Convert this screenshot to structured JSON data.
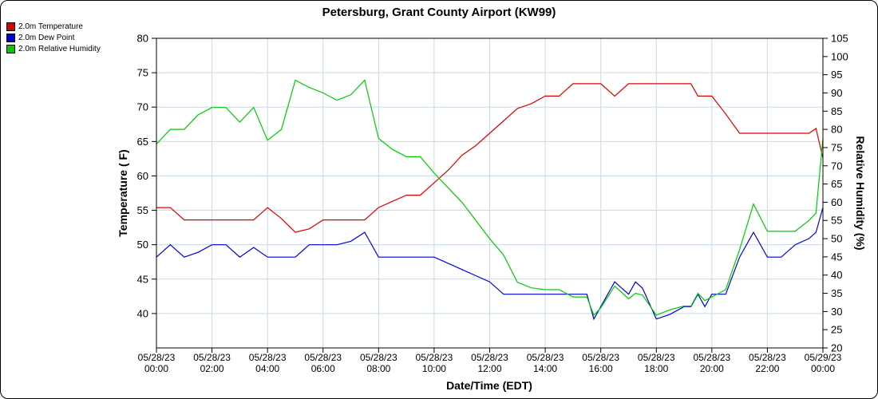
{
  "title": "Petersburg, Grant County Airport (KW99)",
  "legend": [
    {
      "label": "2.0m Temperature",
      "color": "#dd0000"
    },
    {
      "label": "2.0m Dew Point",
      "color": "#0000dd"
    },
    {
      "label": "2.0m Relative Humidity",
      "color": "#00cc00"
    }
  ],
  "axis_titles": {
    "x": "Date/Time (EDT)",
    "y_left": "Temperature ( F)",
    "y_right": "Relative Humidity (%)"
  },
  "chart_data": {
    "type": "line",
    "title": "Petersburg, Grant County Airport (KW99)",
    "xlabel": "Date/Time (EDT)",
    "ylabel_left": "Temperature ( F)",
    "ylabel_right": "Relative Humidity (%)",
    "grid_color": "#c9dae8",
    "x_range": [
      0,
      24
    ],
    "x_ticks": [
      {
        "hour": 0,
        "date": "05/28/23",
        "time": "00:00"
      },
      {
        "hour": 2,
        "date": "05/28/23",
        "time": "02:00"
      },
      {
        "hour": 4,
        "date": "05/28/23",
        "time": "04:00"
      },
      {
        "hour": 6,
        "date": "05/28/23",
        "time": "06:00"
      },
      {
        "hour": 8,
        "date": "05/28/23",
        "time": "08:00"
      },
      {
        "hour": 10,
        "date": "05/28/23",
        "time": "10:00"
      },
      {
        "hour": 12,
        "date": "05/28/23",
        "time": "12:00"
      },
      {
        "hour": 14,
        "date": "05/28/23",
        "time": "14:00"
      },
      {
        "hour": 16,
        "date": "05/28/23",
        "time": "16:00"
      },
      {
        "hour": 18,
        "date": "05/28/23",
        "time": "18:00"
      },
      {
        "hour": 20,
        "date": "05/28/23",
        "time": "20:00"
      },
      {
        "hour": 22,
        "date": "05/28/23",
        "time": "22:00"
      },
      {
        "hour": 24,
        "date": "05/29/23",
        "time": "00:00"
      }
    ],
    "y_left": {
      "range": [
        35,
        80
      ],
      "ticks": [
        40,
        45,
        50,
        55,
        60,
        65,
        70,
        75,
        80
      ]
    },
    "y_right": {
      "range": [
        20,
        105
      ],
      "ticks": [
        20,
        25,
        30,
        35,
        40,
        45,
        50,
        55,
        60,
        65,
        70,
        75,
        80,
        85,
        90,
        95,
        100,
        105
      ]
    },
    "x_hours": [
      0,
      0.5,
      1,
      1.5,
      2,
      2.5,
      3,
      3.5,
      4,
      4.5,
      5,
      5.5,
      6,
      6.5,
      7,
      7.5,
      8,
      8.5,
      9,
      9.5,
      10,
      10.5,
      11,
      11.5,
      12,
      12.5,
      13,
      13.5,
      14,
      14.5,
      15,
      15.5,
      15.75,
      16,
      16.5,
      17,
      17.25,
      17.5,
      18,
      18.5,
      19,
      19.25,
      19.5,
      19.75,
      20,
      20.5,
      21,
      21.5,
      22,
      22.5,
      23,
      23.5,
      23.75,
      24
    ],
    "series": [
      {
        "name": "2.0m Temperature",
        "axis": "left",
        "color": "#dd0000",
        "values": [
          55.4,
          55.4,
          53.6,
          53.6,
          53.6,
          53.6,
          53.6,
          53.6,
          55.4,
          53.8,
          51.8,
          52.3,
          53.6,
          53.6,
          53.6,
          53.6,
          55.4,
          56.3,
          57.2,
          57.2,
          59.0,
          60.8,
          63.0,
          64.4,
          66.2,
          68.0,
          69.8,
          70.5,
          71.6,
          71.6,
          73.4,
          73.4,
          73.4,
          73.4,
          71.6,
          73.4,
          73.4,
          73.4,
          73.4,
          73.4,
          73.4,
          73.4,
          71.6,
          71.6,
          71.6,
          69.0,
          66.2,
          66.2,
          66.2,
          66.2,
          66.2,
          66.2,
          66.9,
          62.6
        ]
      },
      {
        "name": "2.0m Dew Point",
        "axis": "left",
        "color": "#0000dd",
        "values": [
          48.2,
          50.0,
          48.2,
          48.9,
          50.0,
          50.0,
          48.2,
          49.6,
          48.2,
          48.2,
          48.2,
          50.0,
          50.0,
          50.0,
          50.5,
          51.8,
          48.2,
          48.2,
          48.2,
          48.2,
          48.2,
          47.3,
          46.4,
          45.5,
          44.6,
          42.8,
          42.8,
          42.8,
          42.8,
          42.8,
          42.8,
          42.8,
          39.2,
          41.0,
          44.6,
          42.8,
          44.6,
          43.7,
          39.2,
          39.9,
          41.0,
          41.0,
          42.8,
          41.0,
          42.8,
          42.8,
          48.2,
          51.8,
          48.2,
          48.2,
          50.0,
          50.9,
          51.8,
          55.4
        ]
      },
      {
        "name": "2.0m Relative Humidity",
        "axis": "right",
        "color": "#00cc00",
        "values": [
          76,
          80,
          80,
          84,
          86,
          86,
          82,
          86,
          77,
          80,
          93.5,
          91.5,
          90,
          88,
          89.5,
          93.5,
          77.5,
          74.5,
          72.5,
          72.5,
          68,
          64,
          60,
          55,
          50,
          45.5,
          38,
          36.5,
          36,
          36,
          34,
          34,
          29,
          31,
          37,
          33.5,
          35,
          34.5,
          29,
          30.5,
          31.5,
          31.5,
          35,
          33,
          34,
          36,
          47,
          59.5,
          52,
          52,
          52,
          55,
          57,
          77.5
        ]
      }
    ]
  }
}
